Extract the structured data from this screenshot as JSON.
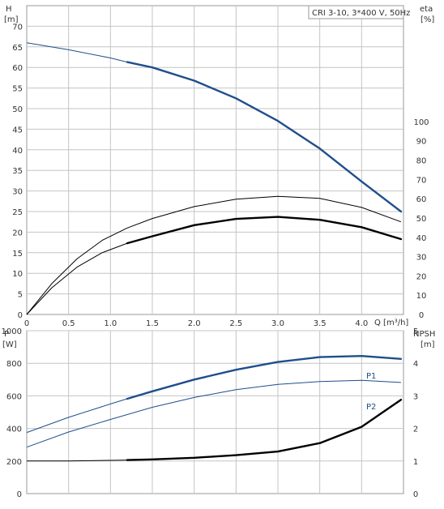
{
  "chart_data": [
    {
      "type": "line",
      "title": "CRI 3-10, 3*400 V, 50Hz",
      "xlabel": "Q [m³/h]",
      "ylabel_left": {
        "name": "H",
        "unit": "[m]"
      },
      "ylabel_right": {
        "name": "eta",
        "unit": "[%]"
      },
      "xlim": [
        0,
        4.5
      ],
      "ylim_left": [
        0,
        75
      ],
      "ylim_right": [
        0,
        160
      ],
      "x_ticks": [
        "0",
        "0.5",
        "1.0",
        "1.5",
        "2.0",
        "2.5",
        "3.0",
        "3.5",
        "4.0"
      ],
      "y_left_ticks": [
        "0",
        "5",
        "10",
        "15",
        "20",
        "25",
        "30",
        "35",
        "40",
        "45",
        "50",
        "55",
        "60",
        "65",
        "70"
      ],
      "y_right_ticks": [
        "0",
        "10",
        "20",
        "30",
        "40",
        "50",
        "60",
        "70",
        "80",
        "90",
        "100"
      ],
      "grid": true,
      "series": [
        {
          "axis": "left",
          "color": "#1f4e8c",
          "points": [
            [
              0,
              66
            ],
            [
              0.5,
              64.3
            ],
            [
              1.0,
              62.3
            ],
            [
              1.2,
              61.3
            ],
            [
              1.5,
              60.0
            ],
            [
              2.0,
              56.8
            ],
            [
              2.5,
              52.5
            ],
            [
              3.0,
              47.0
            ],
            [
              3.5,
              40.3
            ],
            [
              4.0,
              32.3
            ],
            [
              4.47,
              25
            ]
          ],
          "bold_from": 1.2
        },
        {
          "axis": "left",
          "color": "#000000",
          "points": [
            [
              0,
              0
            ],
            [
              0.3,
              7.5
            ],
            [
              0.6,
              13.5
            ],
            [
              0.9,
              18.0
            ],
            [
              1.2,
              21.0
            ],
            [
              1.5,
              23.3
            ],
            [
              2.0,
              26.2
            ],
            [
              2.5,
              28.0
            ],
            [
              3.0,
              28.7
            ],
            [
              3.5,
              28.2
            ],
            [
              4.0,
              26.0
            ],
            [
              4.47,
              22.5
            ]
          ],
          "bold_from": null
        },
        {
          "axis": "left",
          "color": "#000000",
          "points": [
            [
              0,
              0
            ],
            [
              0.3,
              6.5
            ],
            [
              0.6,
              11.5
            ],
            [
              0.9,
              15.0
            ],
            [
              1.2,
              17.3
            ],
            [
              1.5,
              19.0
            ],
            [
              2.0,
              21.7
            ],
            [
              2.5,
              23.2
            ],
            [
              3.0,
              23.7
            ],
            [
              3.5,
              23.0
            ],
            [
              4.0,
              21.2
            ],
            [
              4.47,
              18.3
            ]
          ],
          "bold_from": 1.2
        }
      ]
    },
    {
      "type": "line",
      "xlabel": "",
      "ylabel_left": {
        "name": "P",
        "unit": "[W]"
      },
      "ylabel_right": {
        "name": "NPSH",
        "unit": "[m]"
      },
      "xlim": [
        0,
        4.5
      ],
      "ylim_left": [
        0,
        1000
      ],
      "ylim_right": [
        0,
        5
      ],
      "y_left_ticks": [
        "0",
        "200",
        "400",
        "600",
        "800",
        "1000"
      ],
      "y_right_ticks": [
        "0",
        "1",
        "2",
        "3",
        "4",
        "5"
      ],
      "grid": true,
      "series": [
        {
          "name": "P1",
          "axis": "left",
          "color": "#1f4e8c",
          "points": [
            [
              0,
              375
            ],
            [
              0.5,
              468
            ],
            [
              1.0,
              550
            ],
            [
              1.2,
              582
            ],
            [
              1.5,
              628
            ],
            [
              2.0,
              700
            ],
            [
              2.5,
              760
            ],
            [
              3.0,
              808
            ],
            [
              3.5,
              838
            ],
            [
              4.0,
              845
            ],
            [
              4.47,
              827
            ]
          ],
          "bold_from": 1.2
        },
        {
          "name": "P2",
          "axis": "left",
          "color": "#1f4e8c",
          "points": [
            [
              0,
              285
            ],
            [
              0.5,
              378
            ],
            [
              1.0,
              455
            ],
            [
              1.5,
              530
            ],
            [
              2.0,
              590
            ],
            [
              2.5,
              638
            ],
            [
              3.0,
              670
            ],
            [
              3.5,
              688
            ],
            [
              4.0,
              695
            ],
            [
              4.47,
              682
            ]
          ],
          "bold_from": null
        },
        {
          "name": "",
          "axis": "right",
          "color": "#000000",
          "points": [
            [
              0,
              1.0
            ],
            [
              0.5,
              1.0
            ],
            [
              1.0,
              1.02
            ],
            [
              1.2,
              1.03
            ],
            [
              1.5,
              1.05
            ],
            [
              2.0,
              1.1
            ],
            [
              2.5,
              1.18
            ],
            [
              3.0,
              1.29
            ],
            [
              3.5,
              1.55
            ],
            [
              4.0,
              2.05
            ],
            [
              4.47,
              2.88
            ]
          ],
          "bold_from": 1.2
        }
      ]
    }
  ]
}
